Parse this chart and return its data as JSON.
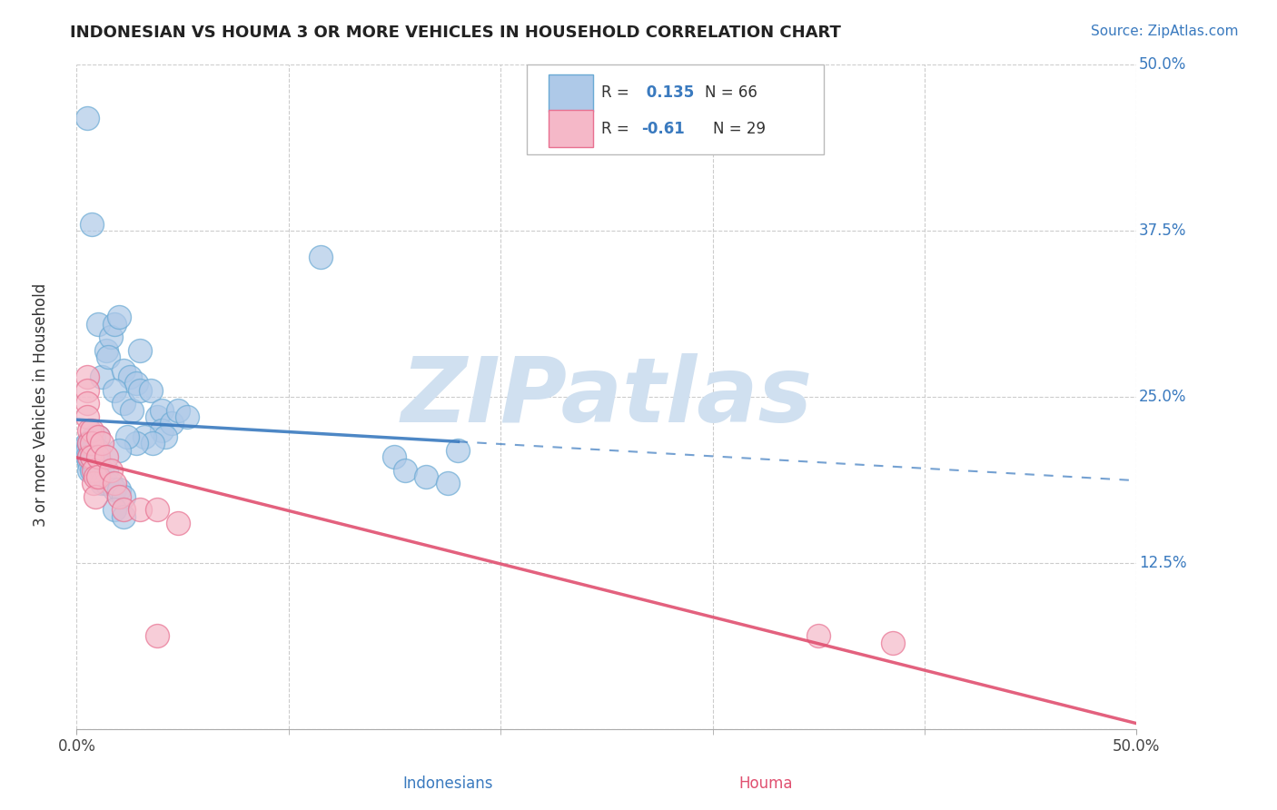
{
  "title": "INDONESIAN VS HOUMA 3 OR MORE VEHICLES IN HOUSEHOLD CORRELATION CHART",
  "source": "Source: ZipAtlas.com",
  "ylabel": "3 or more Vehicles in Household",
  "xmin": 0.0,
  "xmax": 0.5,
  "ymin": 0.0,
  "ymax": 0.5,
  "yticks": [
    0.0,
    0.125,
    0.25,
    0.375,
    0.5
  ],
  "ytick_labels": [
    "",
    "12.5%",
    "25.0%",
    "37.5%",
    "50.0%"
  ],
  "r_indonesian": 0.135,
  "n_indonesian": 66,
  "r_houma": -0.61,
  "n_houma": 29,
  "indonesian_color": "#aec9e8",
  "houma_color": "#f5b8c8",
  "indonesian_edge_color": "#6aaad4",
  "houma_edge_color": "#e87090",
  "indonesian_line_color": "#3a7abf",
  "houma_line_color": "#e05070",
  "watermark_color": "#d0e0f0",
  "background_color": "#ffffff",
  "indonesian_points": [
    [
      0.005,
      0.46
    ],
    [
      0.007,
      0.38
    ],
    [
      0.01,
      0.305
    ],
    [
      0.012,
      0.265
    ],
    [
      0.014,
      0.285
    ],
    [
      0.016,
      0.295
    ],
    [
      0.018,
      0.305
    ],
    [
      0.02,
      0.31
    ],
    [
      0.015,
      0.28
    ],
    [
      0.022,
      0.27
    ],
    [
      0.025,
      0.265
    ],
    [
      0.028,
      0.26
    ],
    [
      0.018,
      0.255
    ],
    [
      0.022,
      0.245
    ],
    [
      0.026,
      0.24
    ],
    [
      0.03,
      0.285
    ],
    [
      0.03,
      0.255
    ],
    [
      0.035,
      0.255
    ],
    [
      0.038,
      0.235
    ],
    [
      0.04,
      0.24
    ],
    [
      0.04,
      0.225
    ],
    [
      0.045,
      0.23
    ],
    [
      0.042,
      0.22
    ],
    [
      0.048,
      0.24
    ],
    [
      0.052,
      0.235
    ],
    [
      0.032,
      0.22
    ],
    [
      0.036,
      0.215
    ],
    [
      0.028,
      0.215
    ],
    [
      0.024,
      0.22
    ],
    [
      0.02,
      0.21
    ],
    [
      0.005,
      0.215
    ],
    [
      0.005,
      0.21
    ],
    [
      0.005,
      0.205
    ],
    [
      0.006,
      0.215
    ],
    [
      0.006,
      0.205
    ],
    [
      0.006,
      0.2
    ],
    [
      0.006,
      0.195
    ],
    [
      0.007,
      0.21
    ],
    [
      0.007,
      0.205
    ],
    [
      0.007,
      0.195
    ],
    [
      0.008,
      0.22
    ],
    [
      0.008,
      0.21
    ],
    [
      0.008,
      0.2
    ],
    [
      0.009,
      0.21
    ],
    [
      0.009,
      0.205
    ],
    [
      0.009,
      0.195
    ],
    [
      0.01,
      0.22
    ],
    [
      0.01,
      0.21
    ],
    [
      0.01,
      0.2
    ],
    [
      0.01,
      0.19
    ],
    [
      0.012,
      0.195
    ],
    [
      0.012,
      0.185
    ],
    [
      0.014,
      0.195
    ],
    [
      0.014,
      0.185
    ],
    [
      0.016,
      0.185
    ],
    [
      0.018,
      0.18
    ],
    [
      0.02,
      0.18
    ],
    [
      0.022,
      0.175
    ],
    [
      0.018,
      0.165
    ],
    [
      0.022,
      0.16
    ],
    [
      0.15,
      0.205
    ],
    [
      0.155,
      0.195
    ],
    [
      0.18,
      0.21
    ],
    [
      0.165,
      0.19
    ],
    [
      0.175,
      0.185
    ],
    [
      0.115,
      0.355
    ]
  ],
  "houma_points": [
    [
      0.005,
      0.265
    ],
    [
      0.005,
      0.255
    ],
    [
      0.005,
      0.245
    ],
    [
      0.005,
      0.235
    ],
    [
      0.006,
      0.225
    ],
    [
      0.006,
      0.215
    ],
    [
      0.006,
      0.205
    ],
    [
      0.007,
      0.225
    ],
    [
      0.007,
      0.215
    ],
    [
      0.007,
      0.205
    ],
    [
      0.008,
      0.195
    ],
    [
      0.008,
      0.185
    ],
    [
      0.009,
      0.19
    ],
    [
      0.009,
      0.175
    ],
    [
      0.01,
      0.22
    ],
    [
      0.01,
      0.205
    ],
    [
      0.01,
      0.19
    ],
    [
      0.012,
      0.215
    ],
    [
      0.014,
      0.205
    ],
    [
      0.016,
      0.195
    ],
    [
      0.018,
      0.185
    ],
    [
      0.02,
      0.175
    ],
    [
      0.022,
      0.165
    ],
    [
      0.03,
      0.165
    ],
    [
      0.038,
      0.165
    ],
    [
      0.048,
      0.155
    ],
    [
      0.038,
      0.07
    ],
    [
      0.35,
      0.07
    ],
    [
      0.385,
      0.065
    ]
  ]
}
